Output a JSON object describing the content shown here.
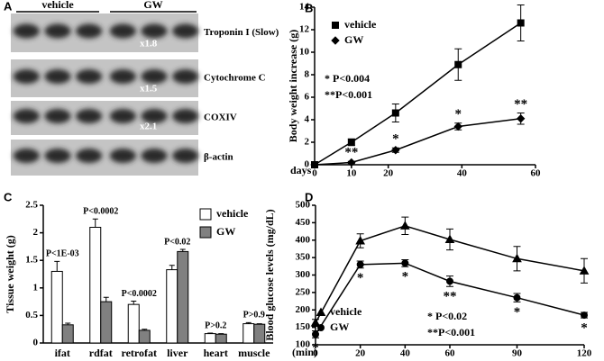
{
  "chart_data": [
    {
      "type": "blot",
      "panel": "A",
      "groups": [
        "vehicle",
        "GW"
      ],
      "bands": [
        "Troponin I (Slow)",
        "Cytochrome C",
        "COXIV",
        "β-actin"
      ],
      "fold_labels": [
        "x1.8",
        "x1.5",
        "x2.1"
      ]
    },
    {
      "type": "line",
      "panel": "B",
      "ylabel": "Body weight increase (g)",
      "xlabel": "days",
      "xlim": [
        0,
        60
      ],
      "xticks": [
        0,
        10,
        20,
        40,
        60
      ],
      "ylim": [
        0,
        14
      ],
      "yticks": [
        0,
        2,
        4,
        6,
        8,
        10,
        12,
        14
      ],
      "x": [
        0,
        10,
        22,
        39,
        56
      ],
      "series": [
        {
          "name": "vehicle",
          "color": "#000000",
          "marker": "square",
          "values": [
            0,
            2,
            4.6,
            8.9,
            12.6
          ],
          "errors": [
            0.1,
            0.3,
            0.8,
            1.4,
            1.6
          ]
        },
        {
          "name": "GW",
          "color": "#000000",
          "marker": "diamond",
          "values": [
            0,
            0.2,
            1.3,
            3.4,
            4.1
          ],
          "errors": [
            0.05,
            0.1,
            0.2,
            0.3,
            0.5
          ],
          "annotations": [
            null,
            "**",
            "*",
            "*",
            "**"
          ]
        }
      ],
      "notes": [
        "* P<0.004",
        "**P<0.001"
      ]
    },
    {
      "type": "bar",
      "panel": "C",
      "ylabel": "Tissue weight (g)",
      "categories": [
        "ifat",
        "rdfat",
        "retrofat",
        "liver",
        "heart",
        "muscle"
      ],
      "ylim": [
        0,
        2.5
      ],
      "yticks": [
        0,
        0.5,
        1,
        1.5,
        2,
        2.5
      ],
      "series": [
        {
          "name": "vehicle",
          "color": "#ffffff",
          "values": [
            1.3,
            2.1,
            0.7,
            1.33,
            0.17,
            0.35
          ],
          "errors": [
            0.18,
            0.15,
            0.06,
            0.08,
            0.01,
            0.02
          ]
        },
        {
          "name": "GW",
          "color": "#808080",
          "values": [
            0.33,
            0.75,
            0.23,
            1.66,
            0.16,
            0.34
          ],
          "errors": [
            0.03,
            0.08,
            0.02,
            0.04,
            0.01,
            0.01
          ]
        }
      ],
      "annotations": [
        "P<1E-03",
        "P<0.0002",
        "P<0.0002",
        "P<0.02",
        "P>0.2",
        "P>0.9"
      ]
    },
    {
      "type": "line",
      "panel": "D",
      "ylabel": "Blood glucose levels (mg/dL)",
      "xlabel": "(min)",
      "xlim": [
        0,
        120
      ],
      "xticks": [
        0,
        20,
        40,
        60,
        90,
        120
      ],
      "ylim": [
        100,
        500
      ],
      "yticks": [
        100,
        150,
        200,
        250,
        300,
        350,
        400,
        450,
        500
      ],
      "x": [
        0,
        20,
        40,
        60,
        90,
        120
      ],
      "series": [
        {
          "name": "vehicle",
          "color": "#000000",
          "marker": "triangle",
          "values": [
            163,
            398,
            441,
            402,
            347,
            312
          ],
          "errors": [
            10,
            20,
            25,
            30,
            35,
            35
          ]
        },
        {
          "name": "GW",
          "color": "#000000",
          "marker": "circle",
          "values": [
            130,
            330,
            334,
            282,
            235,
            185
          ],
          "errors": [
            10,
            10,
            10,
            15,
            12,
            8
          ],
          "annotations": [
            "*",
            "*",
            "*",
            "**",
            "*",
            "*"
          ]
        }
      ],
      "notes": [
        "* P<0.02",
        "**P<0.001"
      ]
    }
  ]
}
